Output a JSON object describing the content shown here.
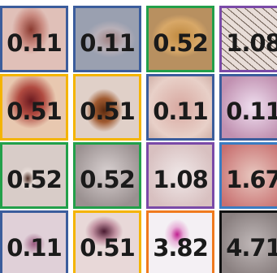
{
  "grid": {
    "cells": [
      {
        "label": "0.11",
        "border": "#3b5d9c"
      },
      {
        "label": "0.11",
        "border": "#3b5d9c"
      },
      {
        "label": "0.52",
        "border": "#22a04a"
      },
      {
        "label": "1.08",
        "border": "#7a4aa8"
      },
      {
        "label": "0.51",
        "border": "#f4b400"
      },
      {
        "label": "0.51",
        "border": "#f4b400"
      },
      {
        "label": "0.11",
        "border": "#3b5d9c"
      },
      {
        "label": "0.11",
        "border": "#3b5d9c"
      },
      {
        "label": "0.52",
        "border": "#22a04a"
      },
      {
        "label": "0.52",
        "border": "#22a04a"
      },
      {
        "label": "1.08",
        "border": "#7a4aa8"
      },
      {
        "label": "1.67",
        "border": "#3a7cc2"
      },
      {
        "label": "0.11",
        "border": "#3b5d9c"
      },
      {
        "label": "0.51",
        "border": "#f4b400"
      },
      {
        "label": "3.82",
        "border": "#f07a1e"
      },
      {
        "label": "4.71",
        "border": "#111111"
      }
    ]
  }
}
